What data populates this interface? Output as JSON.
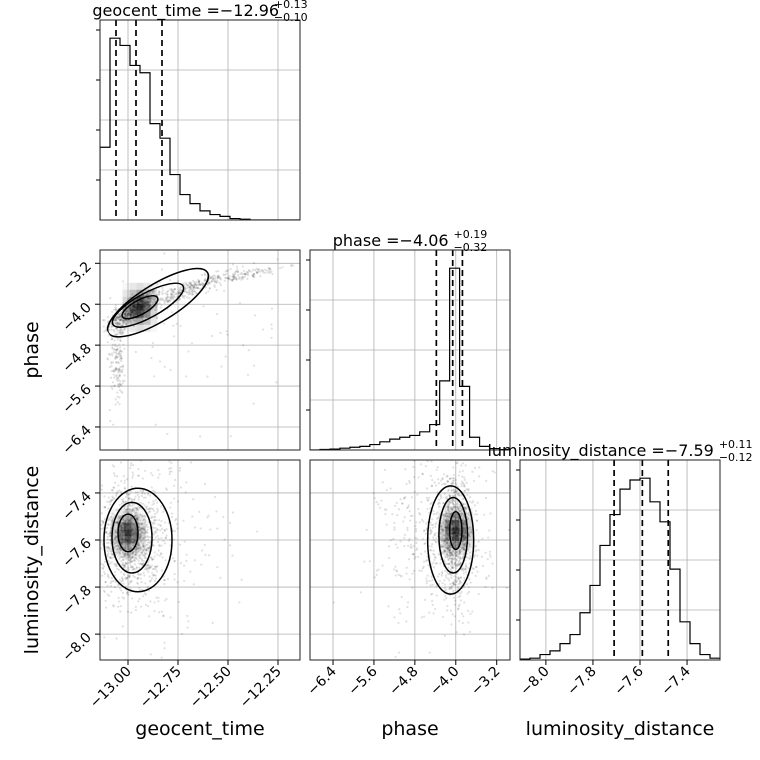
{
  "chart_data": {
    "type": "corner",
    "parameters": [
      {
        "name": "geocent_time",
        "title_text": "geocent_time = ",
        "median_text": "−12.96",
        "upper_text": "+0.13",
        "lower_text": "−0.10",
        "quantiles": [
          -13.06,
          -12.96,
          -12.83
        ],
        "range": [
          -13.14,
          -12.14
        ],
        "ticks": [
          -13.0,
          -12.75,
          -12.5,
          -12.25
        ],
        "tick_labels": [
          "−13.00",
          "−12.75",
          "−12.50",
          "−12.25"
        ],
        "hist_bins": [
          -13.14,
          -13.09,
          -13.04,
          -12.99,
          -12.94,
          -12.89,
          -12.84,
          -12.79,
          -12.74,
          -12.69,
          -12.64,
          -12.59,
          -12.54,
          -12.49,
          -12.44,
          -12.39,
          -12.34,
          -12.29,
          -12.24,
          -12.19,
          -12.14
        ],
        "hist_counts": [
          0.4,
          1.0,
          0.96,
          0.85,
          0.81,
          0.53,
          0.45,
          0.25,
          0.14,
          0.09,
          0.05,
          0.03,
          0.02,
          0.008,
          0.004,
          0,
          0,
          0,
          0,
          0
        ]
      },
      {
        "name": "phase",
        "title_text": "phase = ",
        "median_text": "−4.06",
        "upper_text": "+0.19",
        "lower_text": "−0.32",
        "quantiles": [
          -4.38,
          -4.06,
          -3.87
        ],
        "range": [
          -6.85,
          -2.94
        ],
        "ticks": [
          -6.4,
          -5.6,
          -4.8,
          -4.0,
          -3.2
        ],
        "tick_labels": [
          "−6.4",
          "−5.6",
          "−4.8",
          "−4.0",
          "−3.2"
        ],
        "hist_bins": [
          -6.85,
          -6.655,
          -6.46,
          -6.265,
          -6.07,
          -5.875,
          -5.68,
          -5.485,
          -5.29,
          -5.095,
          -4.9,
          -4.705,
          -4.51,
          -4.315,
          -4.12,
          -3.925,
          -3.73,
          -3.535,
          -3.34,
          -3.145,
          -2.95
        ],
        "hist_counts": [
          0,
          0.003,
          0.005,
          0.01,
          0.015,
          0.02,
          0.03,
          0.045,
          0.06,
          0.07,
          0.08,
          0.1,
          0.14,
          0.38,
          1.0,
          0.35,
          0.07,
          0.02,
          0.008,
          0.002
        ]
      },
      {
        "name": "luminosity_distance",
        "title_text": "luminosity_distance = ",
        "median_text": "−7.59",
        "upper_text": "+0.11",
        "lower_text": "−0.12",
        "quantiles": [
          -7.71,
          -7.59,
          -7.48
        ],
        "range": [
          -8.11,
          -7.26
        ],
        "ticks": [
          -8.0,
          -7.8,
          -7.6,
          -7.4
        ],
        "tick_labels": [
          "−8.0",
          "−7.8",
          "−7.6",
          "−7.4"
        ],
        "hist_bins": [
          -8.11,
          -8.0675,
          -8.025,
          -7.9825,
          -7.94,
          -7.8975,
          -7.855,
          -7.8125,
          -7.77,
          -7.7275,
          -7.685,
          -7.6425,
          -7.6,
          -7.5575,
          -7.515,
          -7.4725,
          -7.43,
          -7.3875,
          -7.345,
          -7.3025,
          -7.26
        ],
        "hist_counts": [
          0.005,
          0.01,
          0.03,
          0.05,
          0.09,
          0.14,
          0.26,
          0.41,
          0.63,
          0.8,
          0.94,
          0.99,
          1.0,
          0.87,
          0.76,
          0.5,
          0.21,
          0.09,
          0.03,
          0.01
        ]
      }
    ],
    "pairs": [
      {
        "x": "geocent_time",
        "y": "phase",
        "clusters": [
          {
            "cx": -12.97,
            "cy": -4.1,
            "sx": 0.06,
            "sy": 0.12,
            "n": 620,
            "rot": 0.55
          },
          {
            "cx": -12.72,
            "cy": -3.75,
            "sx": 0.12,
            "sy": 0.08,
            "n": 260,
            "rot": 0.55
          },
          {
            "cx": -12.45,
            "cy": -3.45,
            "sx": 0.12,
            "sy": 0.05,
            "n": 140,
            "rot": 0.3
          },
          {
            "cx": -13.05,
            "cy": -5.0,
            "sx": 0.02,
            "sy": 0.45,
            "n": 170,
            "rot": 0
          },
          {
            "cx": -12.75,
            "cy": -4.5,
            "sx": 0.4,
            "sy": 0.9,
            "n": 90,
            "rot": 0
          }
        ],
        "contours": [
          {
            "cx": -12.94,
            "cy": -4.06,
            "rx": 0.1,
            "ry": 0.14,
            "rot": 0.5
          },
          {
            "cx": -12.9,
            "cy": -4.02,
            "rx": 0.2,
            "ry": 0.24,
            "rot": 0.5
          },
          {
            "cx": -12.85,
            "cy": -3.97,
            "rx": 0.29,
            "ry": 0.36,
            "rot": 0.55
          }
        ]
      },
      {
        "x": "geocent_time",
        "y": "luminosity_distance",
        "clusters": [
          {
            "cx": -12.99,
            "cy": -7.59,
            "sx": 0.07,
            "sy": 0.11,
            "n": 900,
            "rot": 0
          },
          {
            "cx": -12.9,
            "cy": -7.6,
            "sx": 0.18,
            "sy": 0.2,
            "n": 350,
            "rot": 0
          }
        ],
        "contours": [
          {
            "cx": -13.0,
            "cy": -7.57,
            "rx": 0.05,
            "ry": 0.08,
            "rot": 0
          },
          {
            "cx": -12.98,
            "cy": -7.59,
            "rx": 0.1,
            "ry": 0.15,
            "rot": 0
          },
          {
            "cx": -12.95,
            "cy": -7.6,
            "rx": 0.17,
            "ry": 0.22,
            "rot": 0
          }
        ]
      },
      {
        "x": "phase",
        "y": "luminosity_distance",
        "clusters": [
          {
            "cx": -4.02,
            "cy": -7.58,
            "sx": 0.18,
            "sy": 0.12,
            "n": 900,
            "rot": 0
          },
          {
            "cx": -4.4,
            "cy": -7.6,
            "sx": 0.55,
            "sy": 0.18,
            "n": 380,
            "rot": 0
          }
        ],
        "contours": [
          {
            "cx": -4.0,
            "cy": -7.56,
            "rx": 0.12,
            "ry": 0.08,
            "rot": 0
          },
          {
            "cx": -4.05,
            "cy": -7.58,
            "rx": 0.28,
            "ry": 0.16,
            "rot": 0
          },
          {
            "cx": -4.1,
            "cy": -7.6,
            "rx": 0.45,
            "ry": 0.23,
            "rot": 0
          }
        ]
      }
    ]
  }
}
